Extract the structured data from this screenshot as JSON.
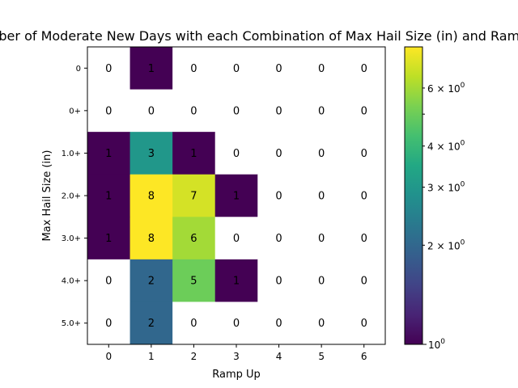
{
  "chart_data": {
    "type": "heatmap",
    "title": "Number of Moderate New Days with each Combination of Max Hail Size (in) and Ramp Up",
    "xlabel": "Ramp Up",
    "ylabel": "Max Hail Size (in)",
    "x_categories": [
      "0",
      "1",
      "2",
      "3",
      "4",
      "5",
      "6"
    ],
    "y_categories": [
      "0",
      "0+",
      "1.0+",
      "2.0+",
      "3.0+",
      "4.0+",
      "5.0+"
    ],
    "values": [
      [
        0,
        1,
        0,
        0,
        0,
        0,
        0
      ],
      [
        0,
        0,
        0,
        0,
        0,
        0,
        0
      ],
      [
        1,
        3,
        1,
        0,
        0,
        0,
        0
      ],
      [
        1,
        8,
        7,
        1,
        0,
        0,
        0
      ],
      [
        1,
        8,
        6,
        0,
        0,
        0,
        0
      ],
      [
        0,
        2,
        5,
        1,
        0,
        0,
        0
      ],
      [
        0,
        2,
        0,
        0,
        0,
        0,
        0
      ]
    ],
    "color_scale": "log",
    "colormap": "viridis",
    "zero_color": "#ffffff",
    "color_range": [
      1,
      8
    ],
    "colorbar": {
      "major_ticks": [
        {
          "value": 1,
          "label": "10^0"
        }
      ],
      "minor_ticks": [
        {
          "value": 2,
          "label": "2 × 10^0"
        },
        {
          "value": 3,
          "label": "3 × 10^0"
        },
        {
          "value": 4,
          "label": "4 × 10^0"
        },
        {
          "value": 5,
          "label": ""
        },
        {
          "value": 6,
          "label": "6 × 10^0"
        }
      ]
    },
    "grid": false
  }
}
